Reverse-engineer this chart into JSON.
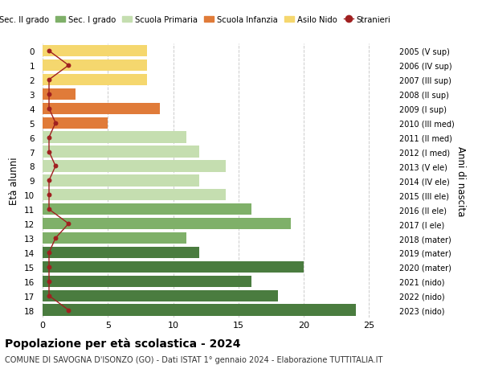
{
  "ages": [
    18,
    17,
    16,
    15,
    14,
    13,
    12,
    11,
    10,
    9,
    8,
    7,
    6,
    5,
    4,
    3,
    2,
    1,
    0
  ],
  "right_labels": [
    "2005 (V sup)",
    "2006 (IV sup)",
    "2007 (III sup)",
    "2008 (II sup)",
    "2009 (I sup)",
    "2010 (III med)",
    "2011 (II med)",
    "2012 (I med)",
    "2013 (V ele)",
    "2014 (IV ele)",
    "2015 (III ele)",
    "2016 (II ele)",
    "2017 (I ele)",
    "2018 (mater)",
    "2019 (mater)",
    "2020 (mater)",
    "2021 (nido)",
    "2022 (nido)",
    "2023 (nido)"
  ],
  "bar_values": [
    24,
    18,
    16,
    20,
    12,
    11,
    19,
    16,
    14,
    12,
    14,
    12,
    11,
    5,
    9,
    2.5,
    8,
    8,
    8
  ],
  "bar_colors": [
    "#4a7c3f",
    "#4a7c3f",
    "#4a7c3f",
    "#4a7c3f",
    "#4a7c3f",
    "#7fb069",
    "#7fb069",
    "#7fb069",
    "#c5deb0",
    "#c5deb0",
    "#c5deb0",
    "#c5deb0",
    "#c5deb0",
    "#e07b39",
    "#e07b39",
    "#e07b39",
    "#f5d76e",
    "#f5d76e",
    "#f5d76e"
  ],
  "stranieri_x": [
    2.0,
    0.5,
    0.5,
    0.5,
    0.5,
    1.0,
    2.0,
    0.5,
    0.5,
    0.5,
    1.0,
    0.5,
    0.5,
    1.0,
    0.5,
    0.5,
    0.5,
    2.0,
    0.5
  ],
  "stranieri_color": "#a02020",
  "title": "Popolazione per età scolastica - 2024",
  "subtitle": "COMUNE DI SAVOGNA D'ISONZO (GO) - Dati ISTAT 1° gennaio 2024 - Elaborazione TUTTITALIA.IT",
  "ylabel": "Età alunni",
  "right_ylabel": "Anni di nascita",
  "xlim": [
    -0.3,
    27
  ],
  "xticks": [
    0,
    5,
    10,
    15,
    20,
    25
  ],
  "legend_items": [
    {
      "label": "Sec. II grado",
      "color": "#4a7c3f"
    },
    {
      "label": "Sec. I grado",
      "color": "#7fb069"
    },
    {
      "label": "Scuola Primaria",
      "color": "#c5deb0"
    },
    {
      "label": "Scuola Infanzia",
      "color": "#e07b39"
    },
    {
      "label": "Asilo Nido",
      "color": "#f5d76e"
    },
    {
      "label": "Stranieri",
      "color": "#a02020"
    }
  ],
  "bg_color": "#ffffff",
  "grid_color": "#cccccc"
}
